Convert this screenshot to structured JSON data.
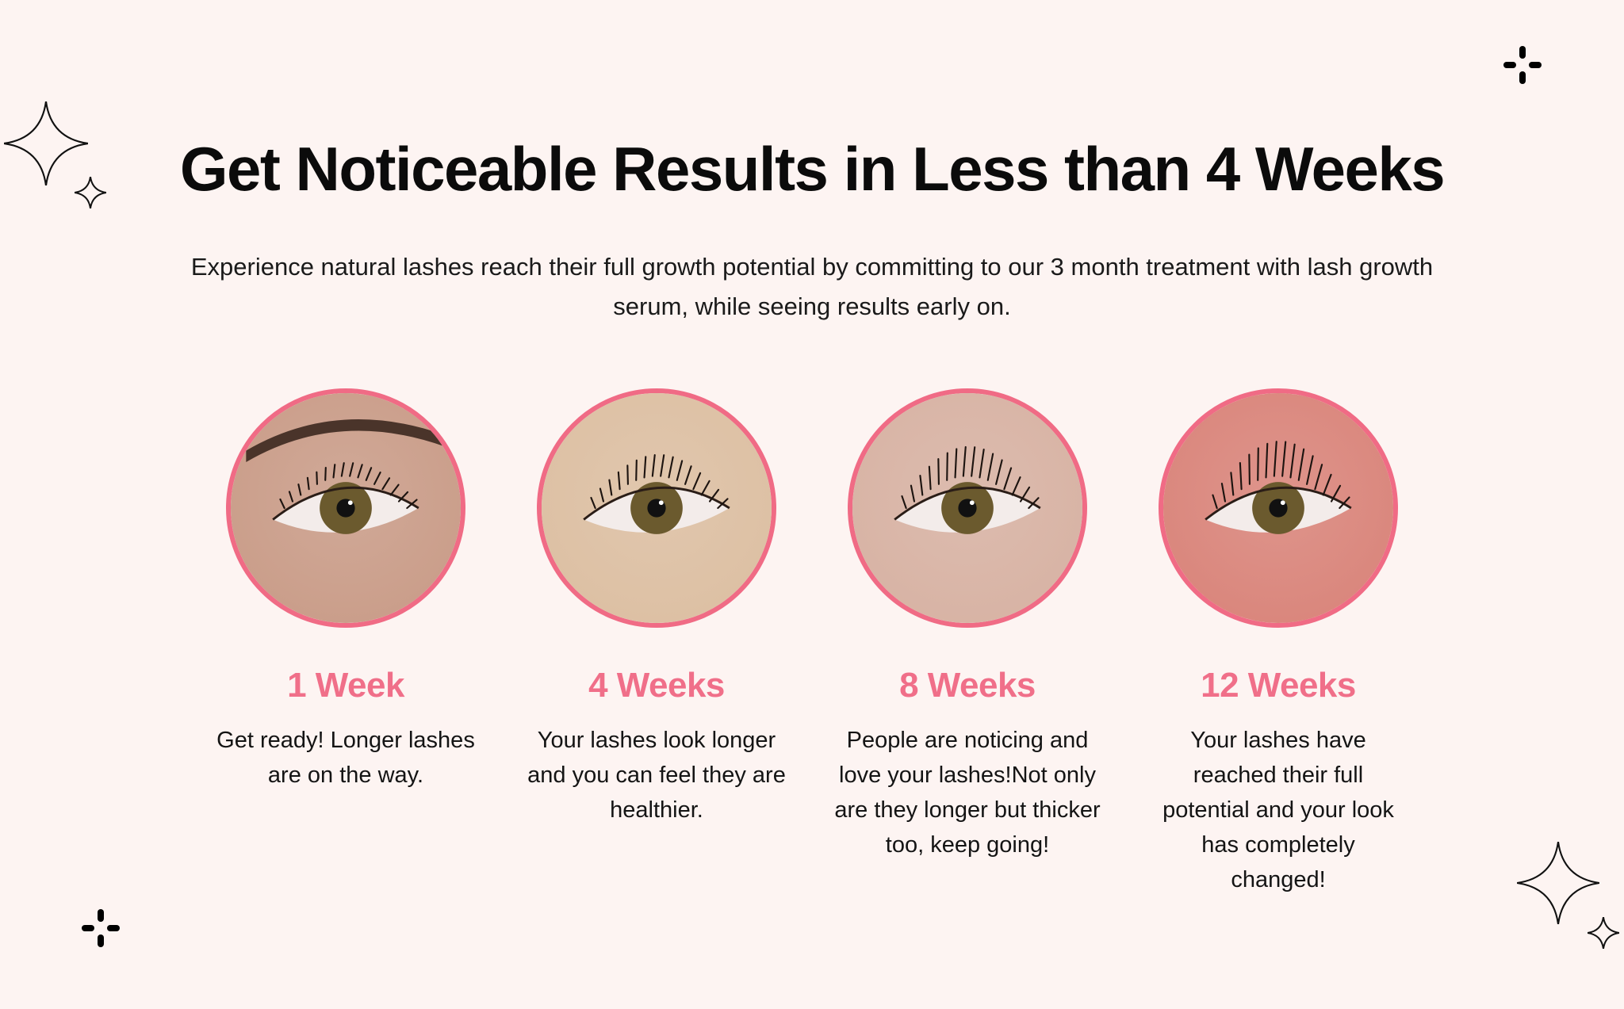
{
  "header": {
    "title": "Get Noticeable Results in Less than 4 Weeks",
    "subtitle": "Experience natural lashes reach their full growth potential by committing to our 3 month treatment with lash growth serum, while seeing results early on."
  },
  "accent_color": "#f06b85",
  "stages": [
    {
      "label": "1 Week",
      "description": "Get ready! Longer lashes are on the way.",
      "image": "eye-photo-week-1"
    },
    {
      "label": "4 Weeks",
      "description": "Your lashes look longer and you can feel they are healthier.",
      "image": "eye-photo-week-4"
    },
    {
      "label": "8 Weeks",
      "description": "People are noticing and love your lashes!Not only are they longer but thicker too, keep going!",
      "image": "eye-photo-week-8"
    },
    {
      "label": "12 Weeks",
      "description": "Your lashes have reached their full potential and your look has completely changed!",
      "image": "eye-photo-week-12"
    }
  ],
  "decorations": [
    "sparkle-outline-icon",
    "plus-sparkle-icon"
  ]
}
